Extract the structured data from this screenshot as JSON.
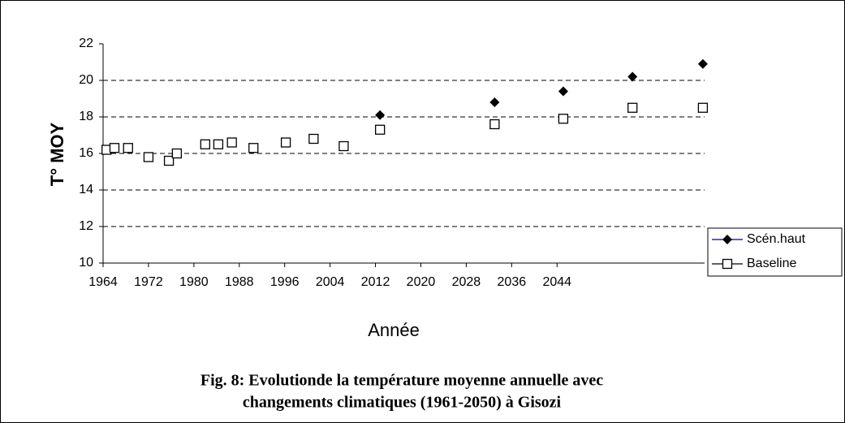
{
  "chart_data": {
    "type": "scatter",
    "x_label": "Année",
    "y_label": "T° MOY",
    "caption": [
      "Fig. 8: Evolutionde la température moyenne annuelle avec",
      "changements climatiques (1961-2050) à Gisozi"
    ],
    "xlim": [
      1964,
      2070
    ],
    "xticks": [
      1964,
      1972,
      1980,
      1988,
      1996,
      2004,
      2012,
      2020,
      2028,
      2036,
      2044
    ],
    "ylim": [
      10,
      22
    ],
    "yticks": [
      10,
      12,
      14,
      16,
      18,
      20,
      22
    ],
    "grid": true,
    "series": [
      {
        "name": "Scén.haut",
        "color": "#000000",
        "marker": "diamond",
        "x": [
          2012.8,
          2033,
          2045.1,
          2057.3,
          2069.7
        ],
        "values": [
          18.1,
          18.8,
          19.4,
          20.2,
          20.9
        ]
      },
      {
        "name": "Baseline",
        "color": "#000000",
        "marker": "square",
        "x": [
          1964.6,
          1966,
          1968.4,
          1972,
          1975.6,
          1977,
          1982,
          1984.3,
          1986.7,
          1990.5,
          1996.2,
          2001.1,
          2006.4,
          2012.8,
          2033,
          2045.1,
          2057.3,
          2069.7
        ],
        "values": [
          16.2,
          16.3,
          16.3,
          15.8,
          15.6,
          16.0,
          16.5,
          16.5,
          16.6,
          16.3,
          16.6,
          16.8,
          16.4,
          17.3,
          17.6,
          17.9,
          18.5,
          18.5
        ]
      }
    ]
  }
}
